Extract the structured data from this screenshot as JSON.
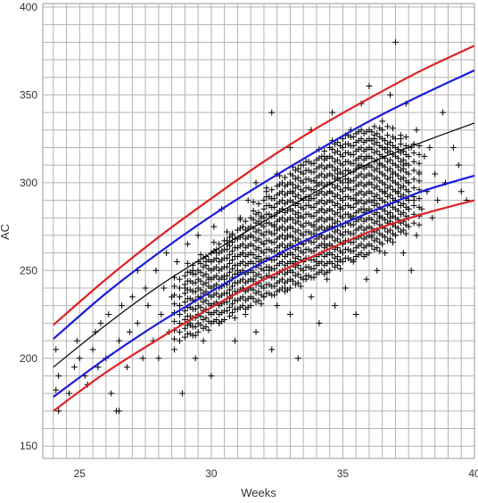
{
  "chart_data": {
    "type": "scatter",
    "title": "",
    "xlabel": "Weeks",
    "ylabel": "AC",
    "xlim": [
      23.6,
      40
    ],
    "ylim": [
      143,
      402
    ],
    "x_ticks": [
      25,
      30,
      35,
      40
    ],
    "x_tick_labels": [
      "25",
      "30",
      "35",
      "40"
    ],
    "y_ticks": [
      150,
      200,
      250,
      300,
      350,
      400
    ],
    "y_tick_labels": [
      "150",
      "200",
      "250",
      "300",
      "350",
      "400"
    ],
    "grid": true,
    "marker": "plus",
    "colors": {
      "grid": "#b4b4b4",
      "marker": "#000000",
      "outer": "#e02020",
      "inner": "#1a1adc",
      "median": "#000000"
    },
    "series": [
      {
        "role": "outer-upper",
        "type": "line",
        "color": "#e02020",
        "x": [
          24,
          26,
          28,
          30,
          32,
          34,
          36,
          38,
          40
        ],
        "y": [
          219,
          245,
          269,
          291,
          312,
          331,
          348,
          364,
          378
        ]
      },
      {
        "role": "inner-upper",
        "type": "line",
        "color": "#1a1adc",
        "x": [
          24,
          26,
          28,
          30,
          32,
          34,
          36,
          38,
          40
        ],
        "y": [
          211,
          237,
          260,
          281,
          300,
          318,
          335,
          350,
          364
        ]
      },
      {
        "role": "median",
        "type": "line",
        "color": "#000000",
        "x": [
          24,
          26,
          28,
          30,
          32,
          34,
          36,
          38,
          40
        ],
        "y": [
          195,
          219,
          241,
          260,
          278,
          295,
          311,
          323,
          334
        ]
      },
      {
        "role": "inner-lower",
        "type": "line",
        "color": "#1a1adc",
        "x": [
          24,
          26,
          28,
          30,
          32,
          34,
          36,
          38,
          40
        ],
        "y": [
          178,
          200,
          220,
          238,
          255,
          270,
          283,
          295,
          304
        ]
      },
      {
        "role": "outer-lower",
        "type": "line",
        "color": "#e02020",
        "x": [
          24,
          26,
          28,
          30,
          32,
          34,
          36,
          38,
          40
        ],
        "y": [
          170,
          192,
          211,
          229,
          245,
          259,
          272,
          282,
          290
        ]
      },
      {
        "role": "observations",
        "type": "scatter",
        "color": "#000000",
        "points": [
          [
            24.2,
            170
          ],
          [
            24.1,
            182
          ],
          [
            24.2,
            190
          ],
          [
            24.1,
            205
          ],
          [
            24.6,
            180
          ],
          [
            24.8,
            195
          ],
          [
            24.9,
            210
          ],
          [
            25.0,
            200
          ],
          [
            25.2,
            190
          ],
          [
            25.3,
            185
          ],
          [
            25.5,
            205
          ],
          [
            25.6,
            215
          ],
          [
            25.7,
            195
          ],
          [
            25.8,
            220
          ],
          [
            26.0,
            200
          ],
          [
            26.1,
            225
          ],
          [
            26.2,
            180
          ],
          [
            26.4,
            170
          ],
          [
            26.5,
            170
          ],
          [
            26.5,
            210
          ],
          [
            26.6,
            230
          ],
          [
            26.8,
            195
          ],
          [
            26.9,
            215
          ],
          [
            27.0,
            235
          ],
          [
            27.2,
            220
          ],
          [
            27.2,
            250
          ],
          [
            27.4,
            200
          ],
          [
            27.5,
            240
          ],
          [
            27.6,
            230
          ],
          [
            27.8,
            210
          ],
          [
            27.9,
            250
          ],
          [
            28.0,
            200
          ],
          [
            28.1,
            225
          ],
          [
            28.2,
            240
          ],
          [
            28.3,
            260
          ],
          [
            28.4,
            215
          ],
          [
            28.5,
            235
          ],
          [
            28.6,
            205
          ],
          [
            28.7,
            255
          ],
          [
            28.8,
            230
          ],
          [
            28.9,
            180
          ],
          [
            29.0,
            240
          ],
          [
            29.1,
            265
          ],
          [
            29.2,
            220
          ],
          [
            29.3,
            250
          ],
          [
            29.4,
            200
          ],
          [
            29.5,
            270
          ],
          [
            29.6,
            235
          ],
          [
            29.7,
            210
          ],
          [
            29.8,
            255
          ],
          [
            29.9,
            245
          ],
          [
            30.0,
            190
          ],
          [
            30.0,
            230
          ],
          [
            30.1,
            275
          ],
          [
            30.2,
            260
          ],
          [
            30.3,
            220
          ],
          [
            30.4,
            285
          ],
          [
            30.5,
            245
          ],
          [
            30.6,
            265
          ],
          [
            30.7,
            235
          ],
          [
            30.8,
            270
          ],
          [
            30.9,
            210
          ],
          [
            31.0,
            250
          ],
          [
            31.1,
            280
          ],
          [
            31.2,
            260
          ],
          [
            31.2,
            240
          ],
          [
            31.3,
            225
          ],
          [
            31.4,
            290
          ],
          [
            31.5,
            270
          ],
          [
            31.6,
            245
          ],
          [
            31.7,
            300
          ],
          [
            31.7,
            215
          ],
          [
            31.8,
            255
          ],
          [
            31.9,
            280
          ],
          [
            32.0,
            235
          ],
          [
            32.0,
            265
          ],
          [
            32.1,
            295
          ],
          [
            32.2,
            250
          ],
          [
            32.3,
            340
          ],
          [
            32.3,
            205
          ],
          [
            32.4,
            275
          ],
          [
            32.5,
            230
          ],
          [
            32.5,
            305
          ],
          [
            32.6,
            260
          ],
          [
            32.7,
            285
          ],
          [
            32.8,
            240
          ],
          [
            32.9,
            270
          ],
          [
            33.0,
            320
          ],
          [
            33.0,
            225
          ],
          [
            33.1,
            295
          ],
          [
            33.2,
            255
          ],
          [
            33.3,
            200
          ],
          [
            33.3,
            280
          ],
          [
            33.4,
            310
          ],
          [
            33.5,
            265
          ],
          [
            33.6,
            245
          ],
          [
            33.7,
            290
          ],
          [
            33.8,
            330
          ],
          [
            33.8,
            235
          ],
          [
            33.9,
            275
          ],
          [
            34.0,
            300
          ],
          [
            34.0,
            255
          ],
          [
            34.1,
            220
          ],
          [
            34.2,
            285
          ],
          [
            34.3,
            315
          ],
          [
            34.3,
            265
          ],
          [
            34.4,
            245
          ],
          [
            34.5,
            295
          ],
          [
            34.6,
            340
          ],
          [
            34.6,
            275
          ],
          [
            34.7,
            230
          ],
          [
            34.8,
            305
          ],
          [
            34.8,
            255
          ],
          [
            34.9,
            285
          ],
          [
            35.0,
            320
          ],
          [
            35.0,
            265
          ],
          [
            35.1,
            240
          ],
          [
            35.2,
            300
          ],
          [
            35.3,
            280
          ],
          [
            35.3,
            330
          ],
          [
            35.4,
            255
          ],
          [
            35.5,
            290
          ],
          [
            35.5,
            225
          ],
          [
            35.6,
            310
          ],
          [
            35.7,
            270
          ],
          [
            35.7,
            345
          ],
          [
            35.8,
            285
          ],
          [
            35.9,
            245
          ],
          [
            35.9,
            315
          ],
          [
            36.0,
            300
          ],
          [
            36.0,
            355
          ],
          [
            36.1,
            270
          ],
          [
            36.2,
            290
          ],
          [
            36.2,
            325
          ],
          [
            36.3,
            250
          ],
          [
            36.4,
            310
          ],
          [
            36.4,
            280
          ],
          [
            36.5,
            335
          ],
          [
            36.6,
            295
          ],
          [
            36.6,
            260
          ],
          [
            36.7,
            320
          ],
          [
            36.8,
            280
          ],
          [
            36.8,
            350
          ],
          [
            36.9,
            305
          ],
          [
            37.0,
            270
          ],
          [
            37.0,
            380
          ],
          [
            37.1,
            295
          ],
          [
            37.2,
            325
          ],
          [
            37.3,
            260
          ],
          [
            37.3,
            310
          ],
          [
            37.4,
            345
          ],
          [
            37.5,
            285
          ],
          [
            37.5,
            300
          ],
          [
            37.6,
            250
          ],
          [
            37.6,
            320
          ],
          [
            37.7,
            290
          ],
          [
            37.8,
            330
          ],
          [
            37.8,
            270
          ],
          [
            37.9,
            305
          ],
          [
            38.0,
            285
          ],
          [
            38.1,
            315
          ],
          [
            38.2,
            295
          ],
          [
            38.3,
            320
          ],
          [
            38.4,
            280
          ],
          [
            38.5,
            305
          ],
          [
            38.6,
            290
          ],
          [
            38.8,
            340
          ],
          [
            38.9,
            300
          ],
          [
            39.2,
            320
          ],
          [
            39.4,
            310
          ],
          [
            39.5,
            295
          ],
          [
            39.7,
            290
          ]
        ],
        "dense_clusters": [
          {
            "x": 29.0,
            "y_range": [
              212,
              250
            ],
            "step": 5
          },
          {
            "x": 29.5,
            "y_range": [
              215,
              255
            ],
            "step": 5
          },
          {
            "x": 30.0,
            "y_range": [
              220,
              262
            ],
            "step": 5
          },
          {
            "x": 30.5,
            "y_range": [
              222,
              268
            ],
            "step": 5
          },
          {
            "x": 31.0,
            "y_range": [
              228,
              275
            ],
            "step": 5
          },
          {
            "x": 31.5,
            "y_range": [
              230,
              280
            ],
            "step": 5
          },
          {
            "x": 32.0,
            "y_range": [
              235,
              290
            ],
            "step": 5
          },
          {
            "x": 32.5,
            "y_range": [
              238,
              300
            ],
            "step": 5
          },
          {
            "x": 33.0,
            "y_range": [
              240,
              305
            ],
            "step": 5
          },
          {
            "x": 33.5,
            "y_range": [
              245,
              310
            ],
            "step": 5
          },
          {
            "x": 34.0,
            "y_range": [
              248,
              315
            ],
            "step": 5
          },
          {
            "x": 34.5,
            "y_range": [
              250,
              320
            ],
            "step": 5
          },
          {
            "x": 35.0,
            "y_range": [
              255,
              325
            ],
            "step": 5
          },
          {
            "x": 35.5,
            "y_range": [
              258,
              330
            ],
            "step": 5
          },
          {
            "x": 36.0,
            "y_range": [
              260,
              332
            ],
            "step": 5
          },
          {
            "x": 36.5,
            "y_range": [
              265,
              330
            ],
            "step": 5
          },
          {
            "x": 37.0,
            "y_range": [
              270,
              325
            ],
            "step": 5
          },
          {
            "x": 37.5,
            "y_range": [
              275,
              320
            ],
            "step": 5
          }
        ]
      }
    ]
  }
}
